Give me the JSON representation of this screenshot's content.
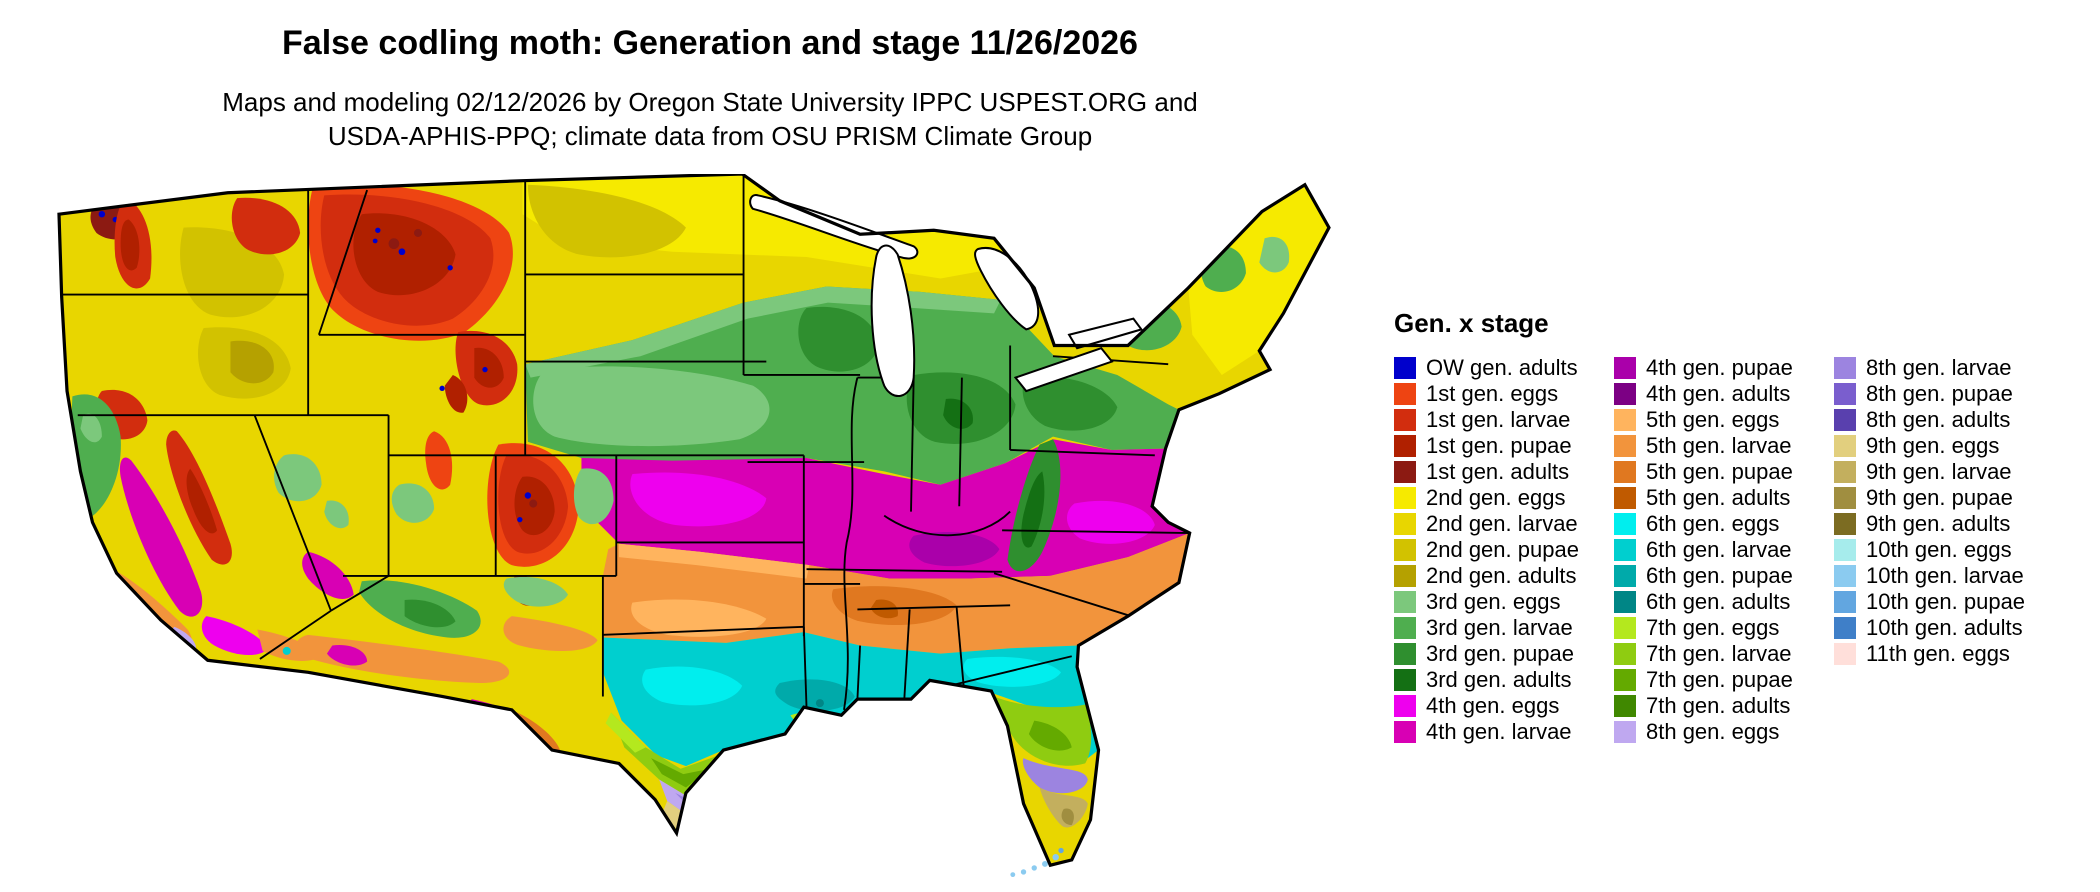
{
  "header": {
    "title": "False codling moth: Generation and stage 11/26/2026",
    "subtitle_line1": "Maps and modeling 02/12/2026 by Oregon State University IPPC USPEST.ORG and",
    "subtitle_line2": "USDA-APHIS-PPQ; climate data from OSU PRISM Climate Group"
  },
  "colors": {
    "ow_adults": "#0000CC",
    "g1_eggs": "#EE4412",
    "g1_larvae": "#D22D0E",
    "g1_pupae": "#B02000",
    "g1_adults": "#8C1A12",
    "g2_eggs": "#F6EA00",
    "g2_larvae": "#E8D600",
    "g2_pupae": "#D2C200",
    "g2_adults": "#B5A100",
    "g3_eggs": "#7CC87C",
    "g3_larvae": "#4FAE4F",
    "g3_pupae": "#2F8F2F",
    "g3_adults": "#147014",
    "g4_eggs": "#EE00EE",
    "g4_larvae": "#D800B4",
    "g4_pupae": "#AA00AA",
    "g4_adults": "#7C0084",
    "g5_eggs": "#FFB45E",
    "g5_larvae": "#F2943C",
    "g5_pupae": "#E07820",
    "g5_adults": "#C05A00",
    "g6_eggs": "#00EEEE",
    "g6_larvae": "#00CFCF",
    "g6_pupae": "#00AAAA",
    "g6_adults": "#008686",
    "g7_eggs": "#B4E81E",
    "g7_larvae": "#8FCC11",
    "g7_pupae": "#64AA00",
    "g7_adults": "#408800",
    "g8_eggs": "#BFA8F0",
    "g8_larvae": "#9C84E0",
    "g8_pupae": "#7A5ECE",
    "g8_adults": "#5940AE",
    "g9_eggs": "#E2CF7E",
    "g9_larvae": "#C3AF5E",
    "g9_pupae": "#A08E40",
    "g9_adults": "#7C6C22",
    "g10_eggs": "#A6ECEC",
    "g10_larvae": "#8BCBF0",
    "g10_pupae": "#62A6E0",
    "g10_adults": "#3F7FC8",
    "g11_eggs": "#FFDFDA"
  },
  "legend": {
    "title": "Gen. x stage",
    "columns": [
      {
        "items": [
          {
            "label": "OW gen. adults",
            "color_key": "ow_adults"
          },
          {
            "label": "1st gen. eggs",
            "color_key": "g1_eggs"
          },
          {
            "label": "1st gen. larvae",
            "color_key": "g1_larvae"
          },
          {
            "label": "1st gen. pupae",
            "color_key": "g1_pupae"
          },
          {
            "label": "1st gen. adults",
            "color_key": "g1_adults"
          },
          {
            "label": "2nd gen. eggs",
            "color_key": "g2_eggs"
          },
          {
            "label": "2nd gen. larvae",
            "color_key": "g2_larvae"
          },
          {
            "label": "2nd gen. pupae",
            "color_key": "g2_pupae"
          },
          {
            "label": "2nd gen. adults",
            "color_key": "g2_adults"
          },
          {
            "label": "3rd gen. eggs",
            "color_key": "g3_eggs"
          },
          {
            "label": "3rd gen. larvae",
            "color_key": "g3_larvae"
          },
          {
            "label": "3rd gen. pupae",
            "color_key": "g3_pupae"
          },
          {
            "label": "3rd gen. adults",
            "color_key": "g3_adults"
          },
          {
            "label": "4th gen. eggs",
            "color_key": "g4_eggs"
          },
          {
            "label": "4th gen. larvae",
            "color_key": "g4_larvae"
          }
        ]
      },
      {
        "items": [
          {
            "label": "4th gen. pupae",
            "color_key": "g4_pupae"
          },
          {
            "label": "4th gen. adults",
            "color_key": "g4_adults"
          },
          {
            "label": "5th gen. eggs",
            "color_key": "g5_eggs"
          },
          {
            "label": "5th gen. larvae",
            "color_key": "g5_larvae"
          },
          {
            "label": "5th gen. pupae",
            "color_key": "g5_pupae"
          },
          {
            "label": "5th gen. adults",
            "color_key": "g5_adults"
          },
          {
            "label": "6th gen. eggs",
            "color_key": "g6_eggs"
          },
          {
            "label": "6th gen. larvae",
            "color_key": "g6_larvae"
          },
          {
            "label": "6th gen. pupae",
            "color_key": "g6_pupae"
          },
          {
            "label": "6th gen. adults",
            "color_key": "g6_adults"
          },
          {
            "label": "7th gen. eggs",
            "color_key": "g7_eggs"
          },
          {
            "label": "7th gen. larvae",
            "color_key": "g7_larvae"
          },
          {
            "label": "7th gen. pupae",
            "color_key": "g7_pupae"
          },
          {
            "label": "7th gen. adults",
            "color_key": "g7_adults"
          },
          {
            "label": "8th gen. eggs",
            "color_key": "g8_eggs"
          }
        ]
      },
      {
        "items": [
          {
            "label": "8th gen. larvae",
            "color_key": "g8_larvae"
          },
          {
            "label": "8th gen. pupae",
            "color_key": "g8_pupae"
          },
          {
            "label": "8th gen. adults",
            "color_key": "g8_adults"
          },
          {
            "label": "9th gen. eggs",
            "color_key": "g9_eggs"
          },
          {
            "label": "9th gen. larvae",
            "color_key": "g9_larvae"
          },
          {
            "label": "9th gen. pupae",
            "color_key": "g9_pupae"
          },
          {
            "label": "9th gen. adults",
            "color_key": "g9_adults"
          },
          {
            "label": "10th gen. eggs",
            "color_key": "g10_eggs"
          },
          {
            "label": "10th gen. larvae",
            "color_key": "g10_larvae"
          },
          {
            "label": "10th gen. pupae",
            "color_key": "g10_pupae"
          },
          {
            "label": "10th gen. adults",
            "color_key": "g10_adults"
          },
          {
            "label": "11th gen. eggs",
            "color_key": "g11_eggs"
          }
        ]
      }
    ]
  }
}
